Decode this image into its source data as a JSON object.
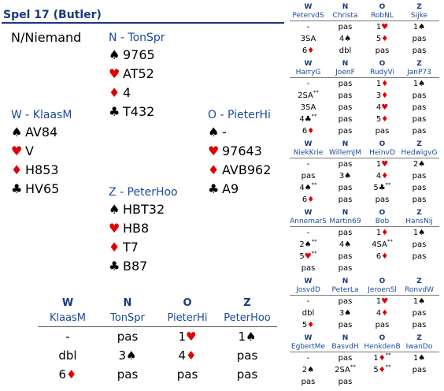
{
  "title": "Spel 17 (Butler)",
  "dealer_vul": "N/Niemand",
  "hands": {
    "north": {
      "name": "N - TonSpr",
      "spades": "9765",
      "hearts": "AT52",
      "diamonds": "4",
      "clubs": "T432"
    },
    "west": {
      "name": "W - KlaasM",
      "spades": "AV84",
      "hearts": "V",
      "diamonds": "H853",
      "clubs": "HV65"
    },
    "east": {
      "name": "O - PieterHi",
      "spades": "-",
      "hearts": "97643",
      "diamonds": "AVB962",
      "clubs": "A9"
    },
    "south": {
      "name": "Z - PeterHoo",
      "spades": "HBT32",
      "hearts": "HB8",
      "diamonds": "T7",
      "clubs": "B87"
    }
  },
  "main_bidding": {
    "letters": [
      "W",
      "N",
      "O",
      "Z"
    ],
    "names": [
      "KlaasM",
      "TonSpr",
      "PieterHi",
      "PeterHoo"
    ],
    "rows": [
      [
        {
          "t": "-"
        },
        {
          "t": "pas"
        },
        {
          "t": "1",
          "s": "♥",
          "c": "red"
        },
        {
          "t": "1",
          "s": "♠",
          "c": "black"
        }
      ],
      [
        {
          "t": "dbl"
        },
        {
          "t": "3",
          "s": "♠",
          "c": "black"
        },
        {
          "t": "4",
          "s": "♦",
          "c": "red"
        },
        {
          "t": "pas"
        }
      ],
      [
        {
          "t": "6",
          "s": "♦",
          "c": "red"
        },
        {
          "t": "pas"
        },
        {
          "t": "pas"
        },
        {
          "t": "pas"
        }
      ]
    ]
  },
  "other_tables": [
    {
      "letters": [
        "W",
        "N",
        "O",
        "Z"
      ],
      "names": [
        "PetervdS",
        "Christa",
        "RobNL",
        "Sijke"
      ],
      "rows": [
        [
          {
            "t": "-"
          },
          {
            "t": "pas"
          },
          {
            "t": "1",
            "s": "♥",
            "c": "red"
          },
          {
            "t": "1",
            "s": "♠",
            "c": "black"
          }
        ],
        [
          {
            "t": "3SA"
          },
          {
            "t": "4",
            "s": "♠",
            "c": "black"
          },
          {
            "t": "5",
            "s": "♦",
            "c": "red"
          },
          {
            "t": "pas"
          }
        ],
        [
          {
            "t": "6",
            "s": "♦",
            "c": "red"
          },
          {
            "t": "dbl"
          },
          {
            "t": "pas"
          },
          {
            "t": "pas"
          }
        ]
      ]
    },
    {
      "letters": [
        "W",
        "N",
        "O",
        "Z"
      ],
      "names": [
        "HarryG",
        "JoenF",
        "RudyVi",
        "JanP73"
      ],
      "rows": [
        [
          {
            "t": "-"
          },
          {
            "t": "pas"
          },
          {
            "t": "1",
            "s": "♦",
            "c": "red"
          },
          {
            "t": "1",
            "s": "♠",
            "c": "black"
          }
        ],
        [
          {
            "t": "2SA",
            "a": "**"
          },
          {
            "t": "pas"
          },
          {
            "t": "3",
            "s": "♦",
            "c": "red"
          },
          {
            "t": "pas"
          }
        ],
        [
          {
            "t": "3SA"
          },
          {
            "t": "pas"
          },
          {
            "t": "4",
            "s": "♥",
            "c": "red"
          },
          {
            "t": "pas"
          }
        ],
        [
          {
            "t": "4",
            "s": "♣",
            "c": "black",
            "a": "**"
          },
          {
            "t": "pas"
          },
          {
            "t": "5",
            "s": "♦",
            "c": "red"
          },
          {
            "t": "pas"
          }
        ],
        [
          {
            "t": "6",
            "s": "♦",
            "c": "red"
          },
          {
            "t": "pas"
          },
          {
            "t": "pas"
          },
          {
            "t": "pas"
          }
        ]
      ]
    },
    {
      "letters": [
        "W",
        "N",
        "O",
        "Z"
      ],
      "names": [
        "NiekKrie",
        "WillemJM",
        "HeinvD",
        "HedwigvG"
      ],
      "rows": [
        [
          {
            "t": "-"
          },
          {
            "t": "pas"
          },
          {
            "t": "1",
            "s": "♥",
            "c": "red"
          },
          {
            "t": "2",
            "s": "♠",
            "c": "black"
          }
        ],
        [
          {
            "t": "pas"
          },
          {
            "t": "3",
            "s": "♠",
            "c": "black"
          },
          {
            "t": "4",
            "s": "♦",
            "c": "red"
          },
          {
            "t": "pas"
          }
        ],
        [
          {
            "t": "4",
            "s": "♠",
            "c": "black",
            "a": "**"
          },
          {
            "t": "pas"
          },
          {
            "t": "5",
            "s": "♣",
            "c": "black",
            "a": "**"
          },
          {
            "t": "pas"
          }
        ],
        [
          {
            "t": "6",
            "s": "♦",
            "c": "red"
          },
          {
            "t": "pas"
          },
          {
            "t": "pas"
          },
          {
            "t": "pas"
          }
        ]
      ]
    },
    {
      "letters": [
        "W",
        "N",
        "O",
        "Z"
      ],
      "names": [
        "AnnemarS",
        "Martin69",
        "Bob",
        "HansNij"
      ],
      "rows": [
        [
          {
            "t": "-"
          },
          {
            "t": "pas"
          },
          {
            "t": "1",
            "s": "♦",
            "c": "red"
          },
          {
            "t": "1",
            "s": "♠",
            "c": "black"
          }
        ],
        [
          {
            "t": "2",
            "s": "♠",
            "c": "black",
            "a": "**"
          },
          {
            "t": "4",
            "s": "♠",
            "c": "black"
          },
          {
            "t": "4SA",
            "a": "**"
          },
          {
            "t": "pas"
          }
        ],
        [
          {
            "t": "5",
            "s": "♥",
            "c": "red",
            "a": "**"
          },
          {
            "t": "pas"
          },
          {
            "t": "6",
            "s": "♦",
            "c": "red"
          },
          {
            "t": "pas"
          }
        ],
        [
          {
            "t": "pas"
          },
          {
            "t": "pas"
          },
          {
            "t": ""
          },
          {
            "t": ""
          }
        ]
      ]
    },
    {
      "letters": [
        "W",
        "N",
        "O",
        "Z"
      ],
      "names": [
        "JosvdD",
        "PeterLa",
        "JeroenSl",
        "RonvdW"
      ],
      "rows": [
        [
          {
            "t": "-"
          },
          {
            "t": "pas"
          },
          {
            "t": "1",
            "s": "♥",
            "c": "red"
          },
          {
            "t": "1",
            "s": "♠",
            "c": "black"
          }
        ],
        [
          {
            "t": "dbl"
          },
          {
            "t": "3",
            "s": "♠",
            "c": "black"
          },
          {
            "t": "4",
            "s": "♦",
            "c": "red"
          },
          {
            "t": "pas"
          }
        ],
        [
          {
            "t": "5",
            "s": "♦",
            "c": "red"
          },
          {
            "t": "pas"
          },
          {
            "t": "pas"
          },
          {
            "t": "pas"
          }
        ]
      ]
    },
    {
      "letters": [
        "W",
        "N",
        "O",
        "Z"
      ],
      "names": [
        "EgbertMe",
        "BasvdH",
        "HenkdenB",
        "IwanDo"
      ],
      "rows": [
        [
          {
            "t": "-"
          },
          {
            "t": "pas"
          },
          {
            "t": "1",
            "s": "♦",
            "c": "red",
            "a": "**"
          },
          {
            "t": "1",
            "s": "♠",
            "c": "black"
          }
        ],
        [
          {
            "t": "2",
            "s": "♠",
            "c": "black"
          },
          {
            "t": "2SA",
            "a": "**"
          },
          {
            "t": "5",
            "s": "♦",
            "c": "red",
            "a": "**"
          },
          {
            "t": "pas"
          }
        ],
        [
          {
            "t": "pas"
          },
          {
            "t": "pas"
          },
          {
            "t": ""
          },
          {
            "t": ""
          }
        ]
      ]
    }
  ]
}
